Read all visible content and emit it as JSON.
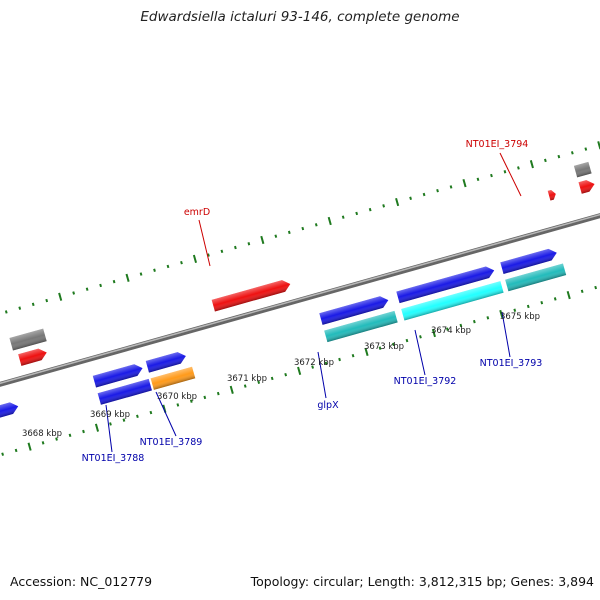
{
  "title": "Edwardsiella ictaluri 93-146, complete genome",
  "footer": {
    "accession": "Accession: NC_012779",
    "summary": "Topology: circular; Length: 3,812,315 bp; Genes: 3,894"
  },
  "colors": {
    "backbone": "#888888",
    "ticks": "#1f7a1f",
    "label_reverse": "#cc0000",
    "label_forward": "#0000aa"
  },
  "scale_labels": [
    "3668 kbp",
    "3669 kbp",
    "3670 kbp",
    "3671 kbp",
    "3672 kbp",
    "3673 kbp",
    "3674 kbp",
    "3675 kbp"
  ],
  "gene_labels": [
    {
      "text": "emrD",
      "strand": "reverse"
    },
    {
      "text": "NT01EI_3794",
      "strand": "reverse"
    },
    {
      "text": "NT01EI_3788",
      "strand": "forward"
    },
    {
      "text": "NT01EI_3789",
      "strand": "forward"
    },
    {
      "text": "glpX",
      "strand": "forward"
    },
    {
      "text": "NT01EI_3792",
      "strand": "forward"
    },
    {
      "text": "NT01EI_3793",
      "strand": "forward"
    }
  ],
  "feature_colors": {
    "cds": "#1a1ae6",
    "gene_red": "#ee1111",
    "gene_gray": "#777777",
    "cyan": "#22ffff",
    "teal": "#22bbbb",
    "orange": "#ff9a1a"
  }
}
